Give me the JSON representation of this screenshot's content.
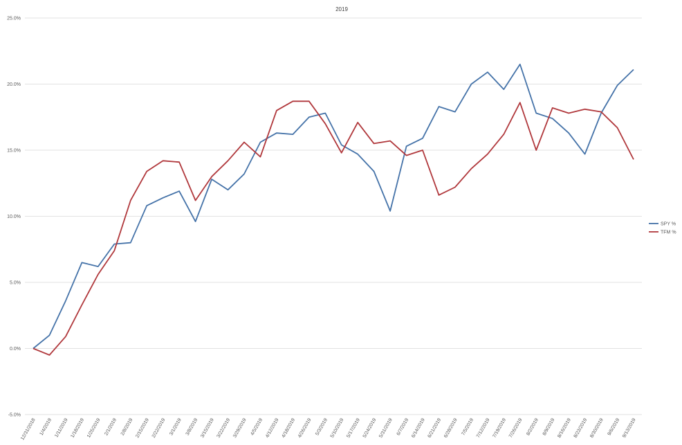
{
  "chart_data": {
    "type": "line",
    "title": "2019",
    "xlabel": "",
    "ylabel": "",
    "ylim": [
      -5.0,
      25.0
    ],
    "yticks": [
      "-5.0%",
      "0.0%",
      "5.0%",
      "10.0%",
      "15.0%",
      "20.0%",
      "25.0%"
    ],
    "grid": true,
    "legend_position": "right",
    "categories": [
      "12/31/2018",
      "1/4/2019",
      "1/11/2019",
      "1/18/2019",
      "1/25/2019",
      "2/1/2019",
      "2/8/2019",
      "2/15/2019",
      "2/22/2019",
      "3/1/2019",
      "3/8/2019",
      "3/15/2019",
      "3/22/2019",
      "3/29/2019",
      "4/5/2019",
      "4/12/2019",
      "4/18/2019",
      "4/26/2019",
      "5/3/2019",
      "5/10/2019",
      "5/17/2019",
      "5/24/2019",
      "5/31/2019",
      "6/7/2019",
      "6/14/2019",
      "6/21/2019",
      "6/28/2019",
      "7/5/2019",
      "7/12/2019",
      "7/19/2019",
      "7/26/2019",
      "8/2/2019",
      "8/9/2019",
      "8/16/2019",
      "8/23/2019",
      "8/30/2019",
      "9/6/2019",
      "9/13/2019"
    ],
    "series": [
      {
        "name": "SPY %",
        "color": "#4472A8",
        "values": [
          0.0,
          1.0,
          3.6,
          6.5,
          6.2,
          7.9,
          8.0,
          10.8,
          11.4,
          11.9,
          9.6,
          12.8,
          12.0,
          13.2,
          15.6,
          16.3,
          16.2,
          17.5,
          17.8,
          15.4,
          14.7,
          13.4,
          10.4,
          15.3,
          15.9,
          18.3,
          17.9,
          20.0,
          20.9,
          19.6,
          21.5,
          17.8,
          17.4,
          16.3,
          14.7,
          17.8,
          19.9,
          21.1
        ]
      },
      {
        "name": "TFM %",
        "color": "#B0373B",
        "values": [
          0.0,
          -0.5,
          0.9,
          3.3,
          5.6,
          7.4,
          11.2,
          13.4,
          14.2,
          14.1,
          11.2,
          13.0,
          14.2,
          15.6,
          14.5,
          18.0,
          18.7,
          18.7,
          17.0,
          14.8,
          17.1,
          15.5,
          15.7,
          14.6,
          15.0,
          11.6,
          12.2,
          13.6,
          14.7,
          16.2,
          18.6,
          15.0,
          18.2,
          17.8,
          18.1,
          17.9,
          16.7,
          14.3
        ]
      }
    ]
  }
}
